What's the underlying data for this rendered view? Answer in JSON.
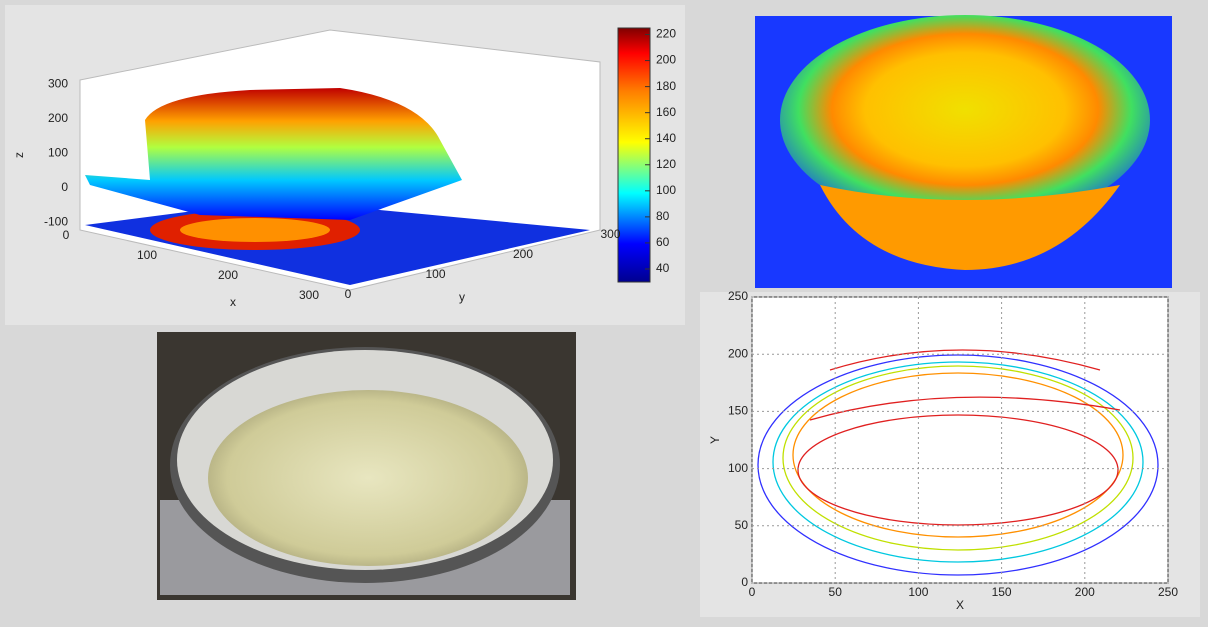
{
  "surface_plot": {
    "x_label": "x",
    "y_label": "y",
    "z_label": "z",
    "xticks": [
      0,
      100,
      200,
      300
    ],
    "yticks": [
      0,
      100,
      200,
      300
    ],
    "zticks": [
      -100,
      0,
      100,
      200,
      300
    ]
  },
  "colorbar": {
    "lim": [
      30,
      225
    ],
    "ticks": [
      40,
      60,
      80,
      100,
      120,
      140,
      160,
      180,
      200,
      220
    ]
  },
  "contour_plot": {
    "x_label": "X",
    "y_label": "Y",
    "xlim": [
      0,
      250
    ],
    "ylim": [
      0,
      250
    ],
    "xticks": [
      0,
      50,
      100,
      150,
      200,
      250
    ],
    "yticks": [
      0,
      50,
      100,
      150,
      200,
      250
    ],
    "grid": true
  }
}
